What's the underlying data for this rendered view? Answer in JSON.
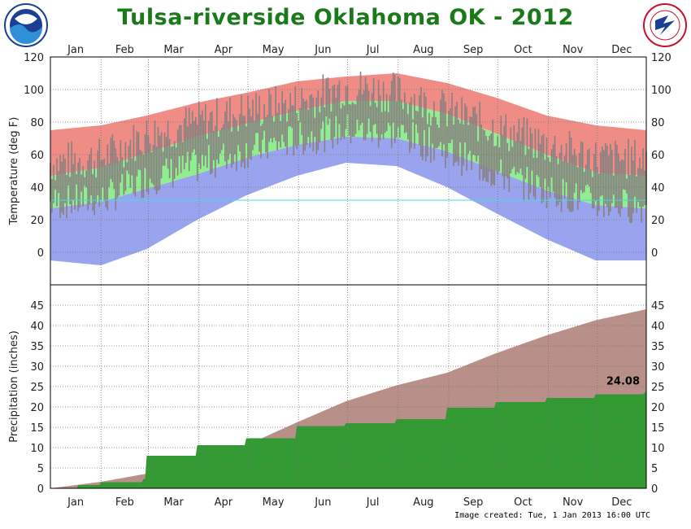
{
  "page": {
    "title": "Tulsa-riverside  Oklahoma OK - 2012",
    "footer": "Image created: Tue, 1 Jan 2013 16:00 UTC",
    "logos": {
      "left": "noaa-logo",
      "right": "nws-logo"
    }
  },
  "chart_data": [
    {
      "type": "area",
      "panel": "temperature",
      "ylabel": "Temperature (deg F)",
      "ylim": [
        -20,
        120
      ],
      "yticks": [
        0,
        20,
        40,
        60,
        80,
        100,
        120
      ],
      "months": [
        "Jan",
        "Feb",
        "Mar",
        "Apr",
        "May",
        "Jun",
        "Jul",
        "Aug",
        "Sep",
        "Oct",
        "Nov",
        "Dec"
      ],
      "grid": true,
      "freezing_line": 32,
      "colors": {
        "record_high": "#f08c86",
        "normal_band": "#90ee90",
        "record_low": "#9aa4ee",
        "observed": "#888080",
        "freeze": "#44dddd"
      },
      "series": [
        {
          "name": "record_high",
          "x": [
            1,
            32,
            60,
            91,
            121,
            152,
            182,
            213,
            244,
            274,
            305,
            335,
            366
          ],
          "values": [
            75,
            78,
            84,
            92,
            98,
            105,
            108,
            110,
            104,
            95,
            84,
            78,
            75
          ]
        },
        {
          "name": "normal_high",
          "x": [
            1,
            32,
            60,
            91,
            121,
            152,
            182,
            213,
            244,
            274,
            305,
            335,
            366
          ],
          "values": [
            47,
            52,
            61,
            71,
            79,
            87,
            93,
            93,
            85,
            73,
            60,
            49,
            47
          ]
        },
        {
          "name": "normal_low",
          "x": [
            1,
            32,
            60,
            91,
            121,
            152,
            182,
            213,
            244,
            274,
            305,
            335,
            366
          ],
          "values": [
            27,
            31,
            39,
            48,
            58,
            66,
            71,
            70,
            62,
            50,
            38,
            29,
            27
          ]
        },
        {
          "name": "record_low",
          "x": [
            1,
            32,
            60,
            91,
            121,
            152,
            182,
            213,
            244,
            274,
            305,
            335,
            366
          ],
          "values": [
            -5,
            -8,
            2,
            20,
            35,
            47,
            55,
            53,
            40,
            24,
            8,
            -5,
            -5
          ]
        },
        {
          "name": "observed_high",
          "x": [
            1,
            32,
            60,
            91,
            121,
            152,
            182,
            213,
            244,
            274,
            305,
            335,
            366
          ],
          "values": [
            55,
            58,
            72,
            80,
            87,
            92,
            102,
            98,
            87,
            76,
            66,
            58,
            57
          ]
        },
        {
          "name": "observed_low",
          "x": [
            1,
            32,
            60,
            91,
            121,
            152,
            182,
            213,
            244,
            274,
            305,
            335,
            366
          ],
          "values": [
            30,
            32,
            45,
            53,
            62,
            69,
            75,
            73,
            62,
            48,
            38,
            30,
            28
          ]
        }
      ]
    },
    {
      "type": "area",
      "panel": "precipitation",
      "ylabel": "Precipitation (inches)",
      "ylim": [
        0,
        50
      ],
      "yticks": [
        0,
        5,
        10,
        15,
        20,
        25,
        30,
        35,
        40,
        45
      ],
      "months": [
        "Jan",
        "Feb",
        "Mar",
        "Apr",
        "May",
        "Jun",
        "Jul",
        "Aug",
        "Sep",
        "Oct",
        "Nov",
        "Dec"
      ],
      "grid": true,
      "colors": {
        "normal": "#b89089",
        "observed": "#339933"
      },
      "annotation": "24.08",
      "series": [
        {
          "name": "normal_cumulative",
          "x": [
            1,
            32,
            60,
            91,
            121,
            152,
            182,
            213,
            244,
            274,
            305,
            335,
            366
          ],
          "values": [
            0,
            1.6,
            3.6,
            6.9,
            10.6,
            16.2,
            21.4,
            25.3,
            28.4,
            33.2,
            37.6,
            41.3,
            44.0
          ]
        },
        {
          "name": "observed_cumulative",
          "x": [
            1,
            18,
            32,
            58,
            60,
            91,
            121,
            152,
            182,
            213,
            244,
            274,
            305,
            335,
            365,
            366
          ],
          "values": [
            0,
            0.8,
            1.5,
            2.3,
            8.0,
            10.6,
            12.3,
            15.3,
            16.0,
            17.0,
            19.8,
            21.2,
            22.2,
            23.1,
            23.5,
            24.08
          ]
        }
      ]
    }
  ]
}
